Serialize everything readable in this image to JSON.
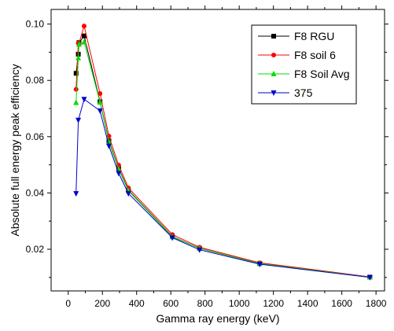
{
  "chart_data": {
    "type": "line",
    "xlabel": "Gamma ray energy (keV)",
    "ylabel": "Absolute full energy peak efficiency",
    "xlim": [
      -100,
      1850
    ],
    "ylim": [
      0.0052,
      0.1052
    ],
    "xticks": [
      0,
      200,
      400,
      600,
      800,
      1000,
      1200,
      1400,
      1600,
      1800
    ],
    "xtick_labels": [
      "0",
      "200",
      "400",
      "600",
      "800",
      "1000",
      "1200",
      "1400",
      "1600",
      "1800"
    ],
    "yticks": [
      0.02,
      0.04,
      0.06,
      0.08,
      0.1
    ],
    "ytick_labels": [
      "0.02",
      "0.04",
      "0.06",
      "0.08",
      "0.10"
    ],
    "grid": false,
    "legend_position": "top-right",
    "series": [
      {
        "name": "F8 RGU",
        "color": "#000000",
        "marker": "square",
        "x": [
          46,
          59,
          63,
          93,
          186,
          238,
          295,
          352,
          609,
          768,
          1120,
          1764
        ],
        "y": [
          0.0825,
          0.0893,
          0.0934,
          0.0958,
          0.0724,
          0.0585,
          0.0487,
          0.041,
          0.0245,
          0.0203,
          0.0149,
          0.0101
        ]
      },
      {
        "name": "F8 soil 6",
        "color": "#ff0000",
        "marker": "circle",
        "x": [
          46,
          59,
          63,
          93,
          186,
          238,
          295,
          352,
          609,
          768,
          1120,
          1764
        ],
        "y": [
          0.0768,
          0.0932,
          0.0932,
          0.0993,
          0.0753,
          0.0602,
          0.0499,
          0.0418,
          0.0252,
          0.0207,
          0.0152,
          0.0102
        ]
      },
      {
        "name": "F8 Soil Avg",
        "color": "#00dd00",
        "marker": "triangle-up",
        "x": [
          46,
          59,
          63,
          93,
          186,
          238,
          295,
          352,
          609,
          768,
          1120,
          1764
        ],
        "y": [
          0.0721,
          0.088,
          0.0928,
          0.0936,
          0.0722,
          0.0581,
          0.0484,
          0.0408,
          0.0244,
          0.0203,
          0.0149,
          0.0101
        ]
      },
      {
        "name": "375",
        "color": "#0000cc",
        "marker": "triangle-down",
        "x": [
          46,
          59,
          93,
          186,
          238,
          295,
          352,
          609,
          768,
          1120,
          1764
        ],
        "y": [
          0.0398,
          0.0659,
          0.0733,
          0.0692,
          0.0567,
          0.047,
          0.0398,
          0.0241,
          0.0198,
          0.0147,
          0.01
        ]
      }
    ]
  }
}
